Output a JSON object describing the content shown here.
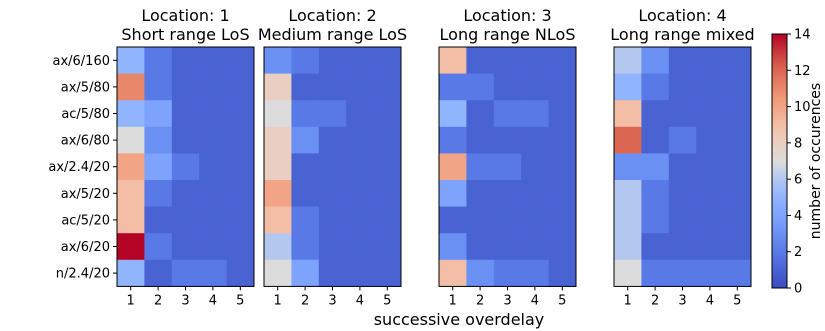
{
  "chart_data": {
    "type": "heatmap",
    "xlabel": "successive overdelay",
    "x_ticks": [
      "1",
      "2",
      "3",
      "4",
      "5"
    ],
    "y_ticks": [
      "ax/6/160",
      "ax/5/80",
      "ac/5/80",
      "ax/6/80",
      "ax/2.4/20",
      "ax/5/20",
      "ac/5/20",
      "ax/6/20",
      "n/2.4/20"
    ],
    "colormap": "coolwarm",
    "colorbar": {
      "label": "number of occurences",
      "min": 0,
      "max": 14,
      "ticks": [
        "0",
        "2",
        "4",
        "6",
        "8",
        "10",
        "12",
        "14"
      ]
    },
    "panels": [
      {
        "title_line1": "Location: 1",
        "title_line2": "Short range LoS",
        "values": [
          [
            5,
            2,
            1,
            1,
            1
          ],
          [
            11,
            2,
            1,
            1,
            1
          ],
          [
            5,
            4,
            1,
            1,
            1
          ],
          [
            7,
            3,
            1,
            1,
            1
          ],
          [
            10,
            4,
            2,
            1,
            1
          ],
          [
            9,
            2,
            1,
            1,
            1
          ],
          [
            9,
            1,
            1,
            1,
            1
          ],
          [
            14,
            2,
            1,
            1,
            1
          ],
          [
            5,
            1,
            2,
            2,
            1
          ]
        ]
      },
      {
        "title_line1": "Location: 2",
        "title_line2": "Medium range LoS",
        "values": [
          [
            3,
            2,
            1,
            1,
            1
          ],
          [
            8,
            1,
            1,
            1,
            1
          ],
          [
            7,
            2,
            2,
            1,
            1
          ],
          [
            8,
            3,
            1,
            1,
            1
          ],
          [
            8,
            1,
            1,
            1,
            1
          ],
          [
            10,
            1,
            1,
            1,
            1
          ],
          [
            9,
            2,
            1,
            1,
            1
          ],
          [
            6,
            2,
            1,
            1,
            1
          ],
          [
            7,
            4,
            1,
            1,
            1
          ]
        ]
      },
      {
        "title_line1": "Location: 3",
        "title_line2": "Long range NLoS",
        "values": [
          [
            9,
            1,
            1,
            1,
            1
          ],
          [
            2,
            2,
            1,
            1,
            1
          ],
          [
            5,
            1,
            2,
            2,
            1
          ],
          [
            2,
            1,
            1,
            1,
            1
          ],
          [
            10,
            2,
            2,
            1,
            1
          ],
          [
            4,
            1,
            1,
            1,
            1
          ],
          [
            1,
            1,
            1,
            1,
            1
          ],
          [
            3,
            1,
            1,
            1,
            1
          ],
          [
            9,
            3,
            2,
            2,
            1
          ]
        ]
      },
      {
        "title_line1": "Location: 4",
        "title_line2": "Long range mixed",
        "values": [
          [
            6,
            3,
            1,
            1,
            1
          ],
          [
            5,
            2,
            1,
            1,
            1
          ],
          [
            9,
            1,
            1,
            1,
            1
          ],
          [
            12,
            1,
            2,
            1,
            1
          ],
          [
            3,
            3,
            1,
            1,
            1
          ],
          [
            6,
            2,
            1,
            1,
            1
          ],
          [
            6,
            2,
            1,
            1,
            1
          ],
          [
            6,
            1,
            1,
            1,
            1
          ],
          [
            7,
            2,
            2,
            2,
            2
          ]
        ]
      }
    ]
  }
}
